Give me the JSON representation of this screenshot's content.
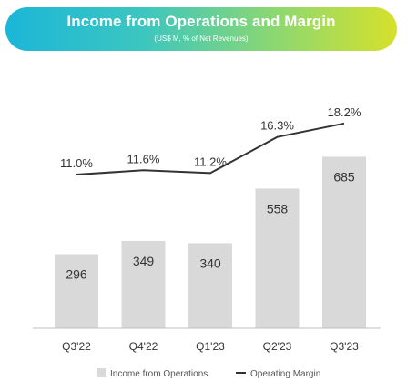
{
  "header": {
    "title": "Income from Operations and Margin",
    "subtitle": "(US$ M, % of Net Revenues)"
  },
  "colors": {
    "bar": "#d9d9d9",
    "line": "#333333",
    "banner_start": "#1bb6d8",
    "banner_end": "#d6e12b"
  },
  "chart_data": {
    "type": "bar",
    "categories": [
      "Q3'22",
      "Q4'22",
      "Q1'23",
      "Q2'23",
      "Q3'23"
    ],
    "series": [
      {
        "name": "Income from Operations",
        "type": "bar",
        "values": [
          296,
          349,
          340,
          558,
          685
        ],
        "labels": [
          "296",
          "349",
          "340",
          "558",
          "685"
        ]
      },
      {
        "name": "Operating Margin",
        "type": "line",
        "values": [
          11.0,
          11.6,
          11.2,
          16.3,
          18.2
        ],
        "labels": [
          "11.0%",
          "11.6%",
          "11.2%",
          "16.3%",
          "18.2%"
        ]
      }
    ],
    "title": "Income from Operations and Margin",
    "subtitle": "(US$ M, % of Net Revenues)",
    "legend_position": "bottom",
    "grid": false
  }
}
